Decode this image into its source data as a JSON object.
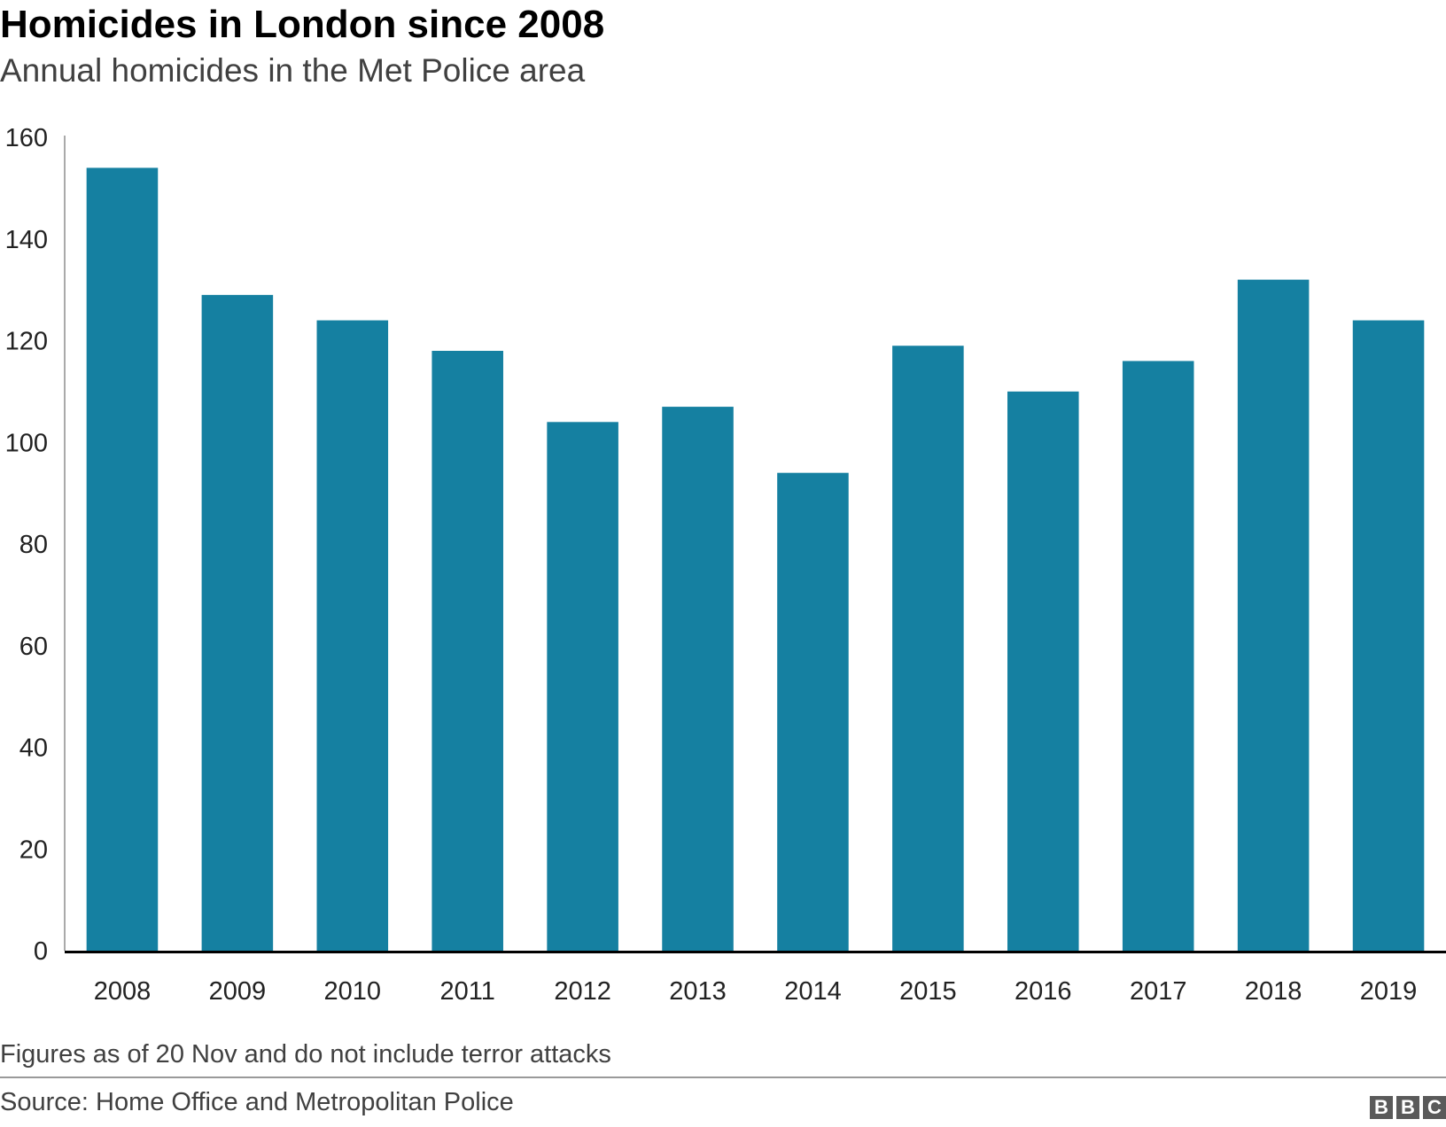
{
  "header": {
    "title": "Homicides in London since 2008",
    "subtitle": "Annual homicides in the Met Police area"
  },
  "footer": {
    "note": "Figures as of 20 Nov and do not include terror attacks",
    "source": "Source: Home Office and Metropolitan Police",
    "logo_letters": [
      "B",
      "B",
      "C"
    ]
  },
  "colors": {
    "bar": "#1580a1",
    "axis": "#000000"
  },
  "chart_data": {
    "type": "bar",
    "title": "Homicides in London since 2008",
    "subtitle": "Annual homicides in the Met Police area",
    "xlabel": "",
    "ylabel": "",
    "categories": [
      "2008",
      "2009",
      "2010",
      "2011",
      "2012",
      "2013",
      "2014",
      "2015",
      "2016",
      "2017",
      "2018",
      "2019"
    ],
    "values": [
      154,
      129,
      124,
      118,
      104,
      107,
      94,
      119,
      110,
      116,
      132,
      124
    ],
    "ylim": [
      0,
      160
    ],
    "yticks": [
      0,
      20,
      40,
      60,
      80,
      100,
      120,
      140,
      160
    ],
    "grid": false,
    "legend": "none"
  }
}
